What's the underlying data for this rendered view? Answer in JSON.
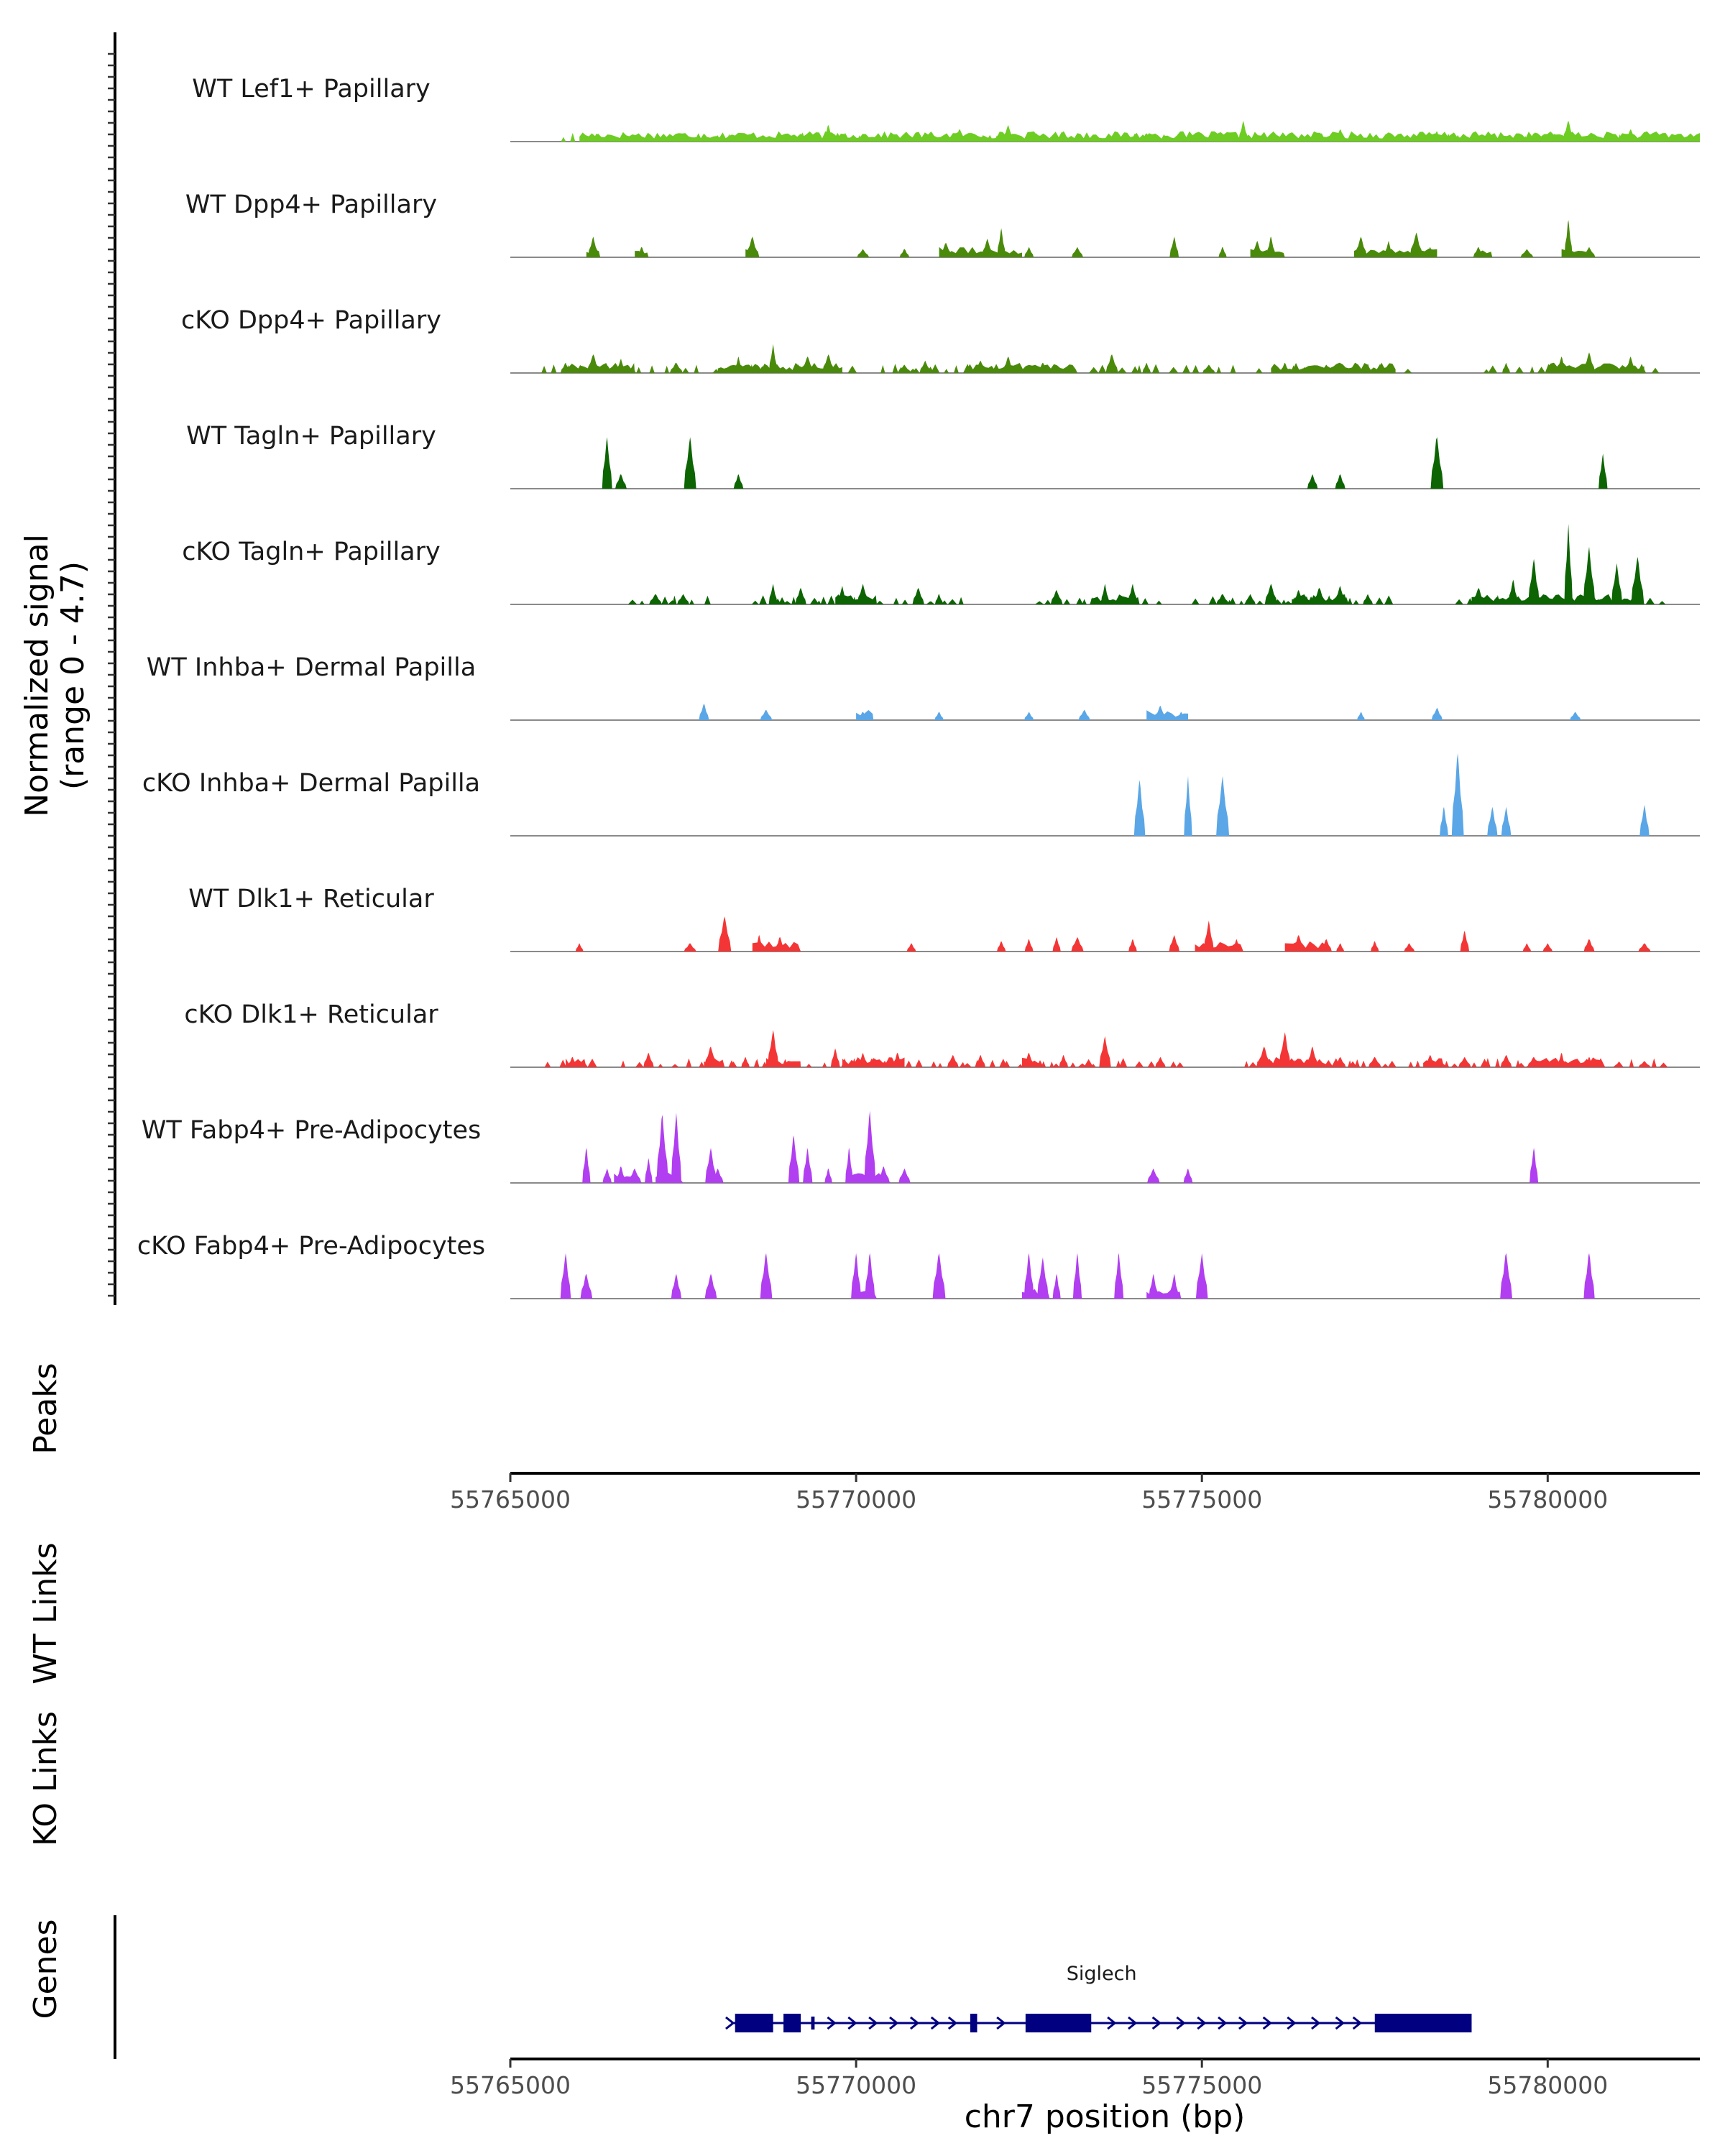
{
  "chart_data": {
    "type": "area",
    "title": "",
    "ylabel_line1": "Normalized signal",
    "ylabel_line2": "(range 0 - 4.7)",
    "y_range": [
      0,
      4.7
    ],
    "x_range": [
      55765000,
      55782200
    ],
    "x_ticks": [
      55765000,
      55770000,
      55775000,
      55780000
    ],
    "x_tick_labels": [
      "55765000",
      "55770000",
      "55775000",
      "55780000"
    ],
    "xlabel": "chr7 position (bp)",
    "panel_labels": {
      "peaks": "Peaks",
      "wt_links": "WT Links",
      "ko_links": "KO Links",
      "genes": "Genes"
    },
    "series": [
      {
        "name": "WT Lef1+ Papillary",
        "color": "#6DCD22",
        "dense": true,
        "peaks": [
          [
            55766100,
            0.3
          ],
          [
            55767300,
            0.3
          ],
          [
            55768000,
            0.3
          ],
          [
            55769600,
            0.8
          ],
          [
            55770300,
            0.3
          ],
          [
            55771500,
            0.6
          ],
          [
            55772200,
            0.8
          ],
          [
            55773000,
            0.5
          ],
          [
            55774200,
            0.4
          ],
          [
            55775600,
            1.0
          ],
          [
            55777000,
            0.6
          ],
          [
            55778400,
            0.5
          ],
          [
            55779800,
            0.4
          ],
          [
            55780300,
            1.0
          ],
          [
            55781200,
            0.6
          ]
        ],
        "spans": [
          [
            55766000,
            55782200
          ]
        ]
      },
      {
        "name": "WT Dpp4+ Papillary",
        "color": "#4A8A0A",
        "peaks": [
          [
            55766200,
            1.0
          ],
          [
            55766900,
            0.5
          ],
          [
            55768500,
            1.0
          ],
          [
            55770100,
            0.4
          ],
          [
            55770700,
            0.4
          ],
          [
            55771300,
            0.7
          ],
          [
            55771900,
            0.9
          ],
          [
            55772100,
            1.4
          ],
          [
            55772500,
            0.5
          ],
          [
            55773200,
            0.5
          ],
          [
            55774600,
            1.0
          ],
          [
            55775300,
            0.5
          ],
          [
            55775800,
            0.8
          ],
          [
            55776000,
            1.0
          ],
          [
            55777300,
            1.0
          ],
          [
            55777700,
            0.8
          ],
          [
            55778100,
            1.2
          ],
          [
            55778300,
            0.5
          ],
          [
            55779000,
            0.5
          ],
          [
            55779700,
            0.4
          ],
          [
            55780300,
            1.8
          ],
          [
            55780600,
            0.5
          ]
        ],
        "spans": [
          [
            55766100,
            55766300
          ],
          [
            55766800,
            55767000
          ],
          [
            55768400,
            55768600
          ],
          [
            55771200,
            55772400
          ],
          [
            55775700,
            55776200
          ],
          [
            55777200,
            55778400
          ],
          [
            55779000,
            55779200
          ],
          [
            55780200,
            55780600
          ]
        ]
      },
      {
        "name": "cKO Dpp4+ Papillary",
        "color": "#4A8A0A",
        "dense": true,
        "peaks": [
          [
            55765800,
            0.5
          ],
          [
            55766200,
            0.9
          ],
          [
            55766600,
            0.7
          ],
          [
            55767400,
            0.5
          ],
          [
            55768300,
            0.8
          ],
          [
            55768800,
            1.4
          ],
          [
            55769300,
            0.8
          ],
          [
            55769600,
            0.9
          ],
          [
            55770700,
            0.4
          ],
          [
            55771000,
            0.6
          ],
          [
            55771800,
            0.6
          ],
          [
            55772200,
            0.8
          ],
          [
            55772700,
            0.5
          ],
          [
            55773700,
            0.9
          ],
          [
            55774200,
            0.5
          ],
          [
            55775100,
            0.4
          ],
          [
            55776200,
            0.5
          ],
          [
            55776800,
            0.4
          ],
          [
            55777600,
            0.5
          ],
          [
            55779400,
            0.5
          ],
          [
            55780200,
            0.8
          ],
          [
            55780600,
            1.0
          ],
          [
            55781200,
            0.8
          ]
        ],
        "spans": [
          [
            55765800,
            55766800
          ],
          [
            55768000,
            55769800
          ],
          [
            55771600,
            55773200
          ],
          [
            55776000,
            55777800
          ],
          [
            55780000,
            55781400
          ]
        ]
      },
      {
        "name": "WT Tagln+ Papillary",
        "color": "#0C6402",
        "peaks": [
          [
            55766400,
            2.5
          ],
          [
            55766600,
            0.7
          ],
          [
            55767600,
            2.5
          ],
          [
            55768300,
            0.7
          ],
          [
            55776600,
            0.7
          ],
          [
            55777000,
            0.7
          ],
          [
            55778400,
            2.5
          ],
          [
            55780800,
            1.7
          ]
        ],
        "spans": []
      },
      {
        "name": "cKO Tagln+ Papillary",
        "color": "#0C6402",
        "dense": true,
        "peaks": [
          [
            55767100,
            0.5
          ],
          [
            55767500,
            0.5
          ],
          [
            55768800,
            1.0
          ],
          [
            55769200,
            0.8
          ],
          [
            55769800,
            0.9
          ],
          [
            55770100,
            1.0
          ],
          [
            55770900,
            0.8
          ],
          [
            55771200,
            0.5
          ],
          [
            55772900,
            0.7
          ],
          [
            55773600,
            1.0
          ],
          [
            55774000,
            1.0
          ],
          [
            55775300,
            0.5
          ],
          [
            55775700,
            0.5
          ],
          [
            55776000,
            1.0
          ],
          [
            55776400,
            0.7
          ],
          [
            55776700,
            0.8
          ],
          [
            55777000,
            0.9
          ],
          [
            55777400,
            0.5
          ],
          [
            55779000,
            0.8
          ],
          [
            55779500,
            1.2
          ],
          [
            55779800,
            2.2
          ],
          [
            55780300,
            3.9
          ],
          [
            55780600,
            2.8
          ],
          [
            55781000,
            2.0
          ],
          [
            55781300,
            2.3
          ]
        ],
        "spans": [
          [
            55769700,
            55770300
          ],
          [
            55773400,
            55774100
          ],
          [
            55776300,
            55777100
          ],
          [
            55778900,
            55781400
          ]
        ]
      },
      {
        "name": "WT Inhba+ Dermal Papilla",
        "color": "#5AA6E6",
        "peaks": [
          [
            55767800,
            0.8
          ],
          [
            55768700,
            0.5
          ],
          [
            55770100,
            0.4
          ],
          [
            55771200,
            0.4
          ],
          [
            55772500,
            0.4
          ],
          [
            55773300,
            0.5
          ],
          [
            55774400,
            0.7
          ],
          [
            55774700,
            0.4
          ],
          [
            55777300,
            0.4
          ],
          [
            55778400,
            0.6
          ],
          [
            55780400,
            0.4
          ]
        ],
        "spans": [
          [
            55770000,
            55770250
          ],
          [
            55774200,
            55774800
          ]
        ]
      },
      {
        "name": "cKO Inhba+ Dermal Papilla",
        "color": "#5AA6E6",
        "peaks": [
          [
            55774100,
            2.7
          ],
          [
            55774800,
            2.9
          ],
          [
            55775300,
            2.9
          ],
          [
            55778500,
            1.4
          ],
          [
            55778700,
            4.0
          ],
          [
            55779200,
            1.4
          ],
          [
            55779400,
            1.4
          ],
          [
            55781400,
            1.5
          ]
        ],
        "spans": []
      },
      {
        "name": "WT Dlk1+ Reticular",
        "color": "#F43535",
        "peaks": [
          [
            55766000,
            0.4
          ],
          [
            55767600,
            0.4
          ],
          [
            55768100,
            1.7
          ],
          [
            55768600,
            0.8
          ],
          [
            55768900,
            0.7
          ],
          [
            55770800,
            0.4
          ],
          [
            55772100,
            0.5
          ],
          [
            55772500,
            0.6
          ],
          [
            55772900,
            0.7
          ],
          [
            55773200,
            0.7
          ],
          [
            55774000,
            0.6
          ],
          [
            55774600,
            0.8
          ],
          [
            55775100,
            1.5
          ],
          [
            55775500,
            0.6
          ],
          [
            55776400,
            0.8
          ],
          [
            55776800,
            0.6
          ],
          [
            55777000,
            0.4
          ],
          [
            55777500,
            0.5
          ],
          [
            55778000,
            0.4
          ],
          [
            55778800,
            1.0
          ],
          [
            55779700,
            0.4
          ],
          [
            55780000,
            0.4
          ],
          [
            55780600,
            0.6
          ],
          [
            55781400,
            0.4
          ]
        ],
        "spans": [
          [
            55768500,
            55769200
          ],
          [
            55774900,
            55775600
          ],
          [
            55776200,
            55776800
          ]
        ]
      },
      {
        "name": "cKO Dlk1+ Reticular",
        "color": "#F43535",
        "dense": true,
        "peaks": [
          [
            55765900,
            0.5
          ],
          [
            55767000,
            0.7
          ],
          [
            55767900,
            1.0
          ],
          [
            55768400,
            0.5
          ],
          [
            55768800,
            1.8
          ],
          [
            55769700,
            0.9
          ],
          [
            55770100,
            0.7
          ],
          [
            55770600,
            0.7
          ],
          [
            55771400,
            0.6
          ],
          [
            55771800,
            0.6
          ],
          [
            55772500,
            0.7
          ],
          [
            55773000,
            0.6
          ],
          [
            55773600,
            1.5
          ],
          [
            55774400,
            0.5
          ],
          [
            55775900,
            1.0
          ],
          [
            55776200,
            1.7
          ],
          [
            55776600,
            1.0
          ],
          [
            55777000,
            0.5
          ],
          [
            55777500,
            0.5
          ],
          [
            55778300,
            0.6
          ],
          [
            55778800,
            0.5
          ],
          [
            55779400,
            0.6
          ],
          [
            55779800,
            0.5
          ],
          [
            55780200,
            0.7
          ],
          [
            55780600,
            0.5
          ],
          [
            55781400,
            0.3
          ]
        ],
        "spans": [
          [
            55765800,
            55766100
          ],
          [
            55767800,
            55768100
          ],
          [
            55768700,
            55769200
          ],
          [
            55769800,
            55770700
          ],
          [
            55772400,
            55772700
          ],
          [
            55775800,
            55776800
          ],
          [
            55778200,
            55778500
          ],
          [
            55779800,
            55780800
          ]
        ]
      },
      {
        "name": "WT Fabp4+ Pre-Adipocytes",
        "color": "#B13EF0",
        "peaks": [
          [
            55766100,
            1.7
          ],
          [
            55766400,
            0.7
          ],
          [
            55766600,
            0.8
          ],
          [
            55766800,
            0.7
          ],
          [
            55767000,
            1.2
          ],
          [
            55767200,
            3.3
          ],
          [
            55767400,
            3.4
          ],
          [
            55767900,
            1.7
          ],
          [
            55768000,
            0.7
          ],
          [
            55769100,
            2.3
          ],
          [
            55769300,
            1.7
          ],
          [
            55769600,
            0.7
          ],
          [
            55769900,
            1.7
          ],
          [
            55770200,
            3.5
          ],
          [
            55770400,
            0.8
          ],
          [
            55770700,
            0.7
          ],
          [
            55774300,
            0.7
          ],
          [
            55774800,
            0.7
          ],
          [
            55779800,
            1.7
          ]
        ],
        "spans": [
          [
            55766500,
            55766900
          ],
          [
            55767100,
            55767500
          ],
          [
            55769850,
            55770500
          ]
        ]
      },
      {
        "name": "cKO Fabp4+ Pre-Adipocytes",
        "color": "#B13EF0",
        "peaks": [
          [
            55765800,
            2.2
          ],
          [
            55766100,
            1.2
          ],
          [
            55767400,
            1.2
          ],
          [
            55767900,
            1.2
          ],
          [
            55768700,
            2.2
          ],
          [
            55770000,
            2.2
          ],
          [
            55770200,
            2.2
          ],
          [
            55771200,
            2.2
          ],
          [
            55772500,
            2.2
          ],
          [
            55772700,
            2.0
          ],
          [
            55772900,
            1.2
          ],
          [
            55773200,
            2.2
          ],
          [
            55773800,
            2.2
          ],
          [
            55774300,
            1.2
          ],
          [
            55774600,
            1.2
          ],
          [
            55775000,
            2.2
          ],
          [
            55779400,
            2.2
          ],
          [
            55780600,
            2.2
          ]
        ],
        "spans": [
          [
            55769950,
            55770300
          ],
          [
            55772400,
            55772800
          ],
          [
            55774200,
            55774700
          ]
        ]
      }
    ],
    "gene": {
      "name": "Siglech",
      "color": "#000080",
      "range": [
        55768200,
        55778900
      ],
      "exons": [
        [
          55768250,
          55768800
        ],
        [
          55768950,
          55769200
        ],
        [
          55771650,
          55771750
        ],
        [
          55772450,
          55773400
        ],
        [
          55777500,
          55778900
        ]
      ],
      "small_exons": [
        [
          55769350,
          55769400
        ]
      ],
      "arrows_at": [
        55768180,
        55769650,
        55769950,
        55770250,
        55770550,
        55770850,
        55771150,
        55771400,
        55772100,
        55773700,
        55774000,
        55774350,
        55774700,
        55775000,
        55775300,
        55775600,
        55775950,
        55776300,
        55776650,
        55777000,
        55777250
      ]
    }
  }
}
